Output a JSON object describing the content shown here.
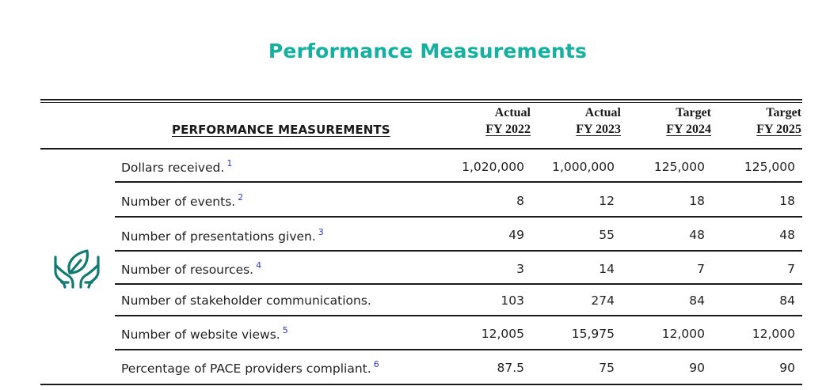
{
  "title": "Performance Measurements",
  "table": {
    "header_label": "PERFORMANCE MEASUREMENTS",
    "columns": [
      {
        "line1": "Actual",
        "line2": "FY 2022"
      },
      {
        "line1": "Actual",
        "line2": "FY 2023"
      },
      {
        "line1": "Target",
        "line2": "FY 2024"
      },
      {
        "line1": "Target",
        "line2": "FY 2025"
      }
    ],
    "rows": [
      {
        "label": "Dollars received.",
        "note": "1",
        "values": [
          "1,020,000",
          "1,000,000",
          "125,000",
          "125,000"
        ]
      },
      {
        "label": "Number of events.",
        "note": "2",
        "values": [
          "8",
          "12",
          "18",
          "18"
        ]
      },
      {
        "label": "Number of presentations given.",
        "note": "3",
        "values": [
          "49",
          "55",
          "48",
          "48"
        ]
      },
      {
        "label": "Number of resources.",
        "note": "4",
        "values": [
          "3",
          "14",
          "7",
          "7"
        ]
      },
      {
        "label": "Number of stakeholder communications.",
        "note": "",
        "values": [
          "103",
          "274",
          "84",
          "84"
        ]
      },
      {
        "label": "Number of website views.",
        "note": "5",
        "values": [
          "12,005",
          "15,975",
          "12,000",
          "12,000"
        ]
      },
      {
        "label": "Percentage of PACE providers compliant.",
        "note": "6",
        "values": [
          "87.5",
          "75",
          "90",
          "90"
        ]
      }
    ]
  },
  "colors": {
    "accent": "#14b0a0",
    "icon": "#137a72",
    "footnote": "#2a38d6"
  },
  "icon": "hands-holding-leaf-icon"
}
